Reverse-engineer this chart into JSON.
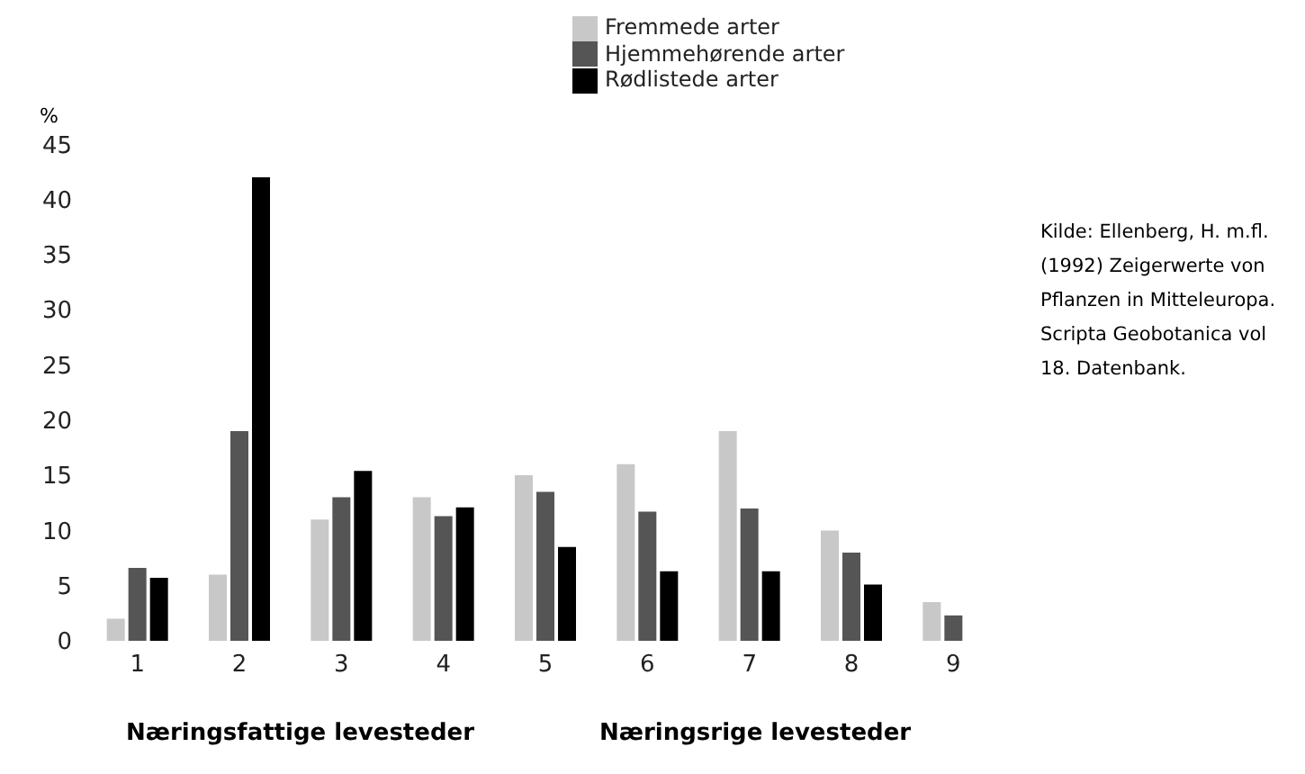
{
  "chart_data": {
    "type": "bar",
    "ylabel": "%",
    "categories": [
      "1",
      "2",
      "3",
      "4",
      "5",
      "6",
      "7",
      "8",
      "9"
    ],
    "series": [
      {
        "name": "Fremmede arter",
        "color": "#c8c8c8",
        "values": [
          2,
          6,
          11,
          13,
          15,
          16,
          19,
          10,
          3.5
        ]
      },
      {
        "name": "Hjemmehørende arter",
        "color": "#555555",
        "values": [
          6.6,
          19,
          13,
          11.3,
          13.5,
          11.7,
          12,
          8,
          2.3
        ]
      },
      {
        "name": "Rødlistede arter",
        "color": "#000000",
        "values": [
          5.7,
          42,
          15.4,
          12.1,
          8.5,
          6.3,
          6.3,
          5.1,
          null
        ]
      }
    ],
    "ylim": [
      0,
      45
    ],
    "yticks": [
      0,
      5,
      10,
      15,
      20,
      25,
      30,
      35,
      40,
      45
    ],
    "grid": false,
    "legend": "top",
    "annotations": [
      "Næringsfattige levesteder",
      "Næringsrige levesteder",
      "Kilde: Ellenberg, H. m.fl. (1992) Zeigerwerte von Pflanzen in Mitteleuropa. Scripta Geobotanica vol 18. Datenbank."
    ]
  }
}
